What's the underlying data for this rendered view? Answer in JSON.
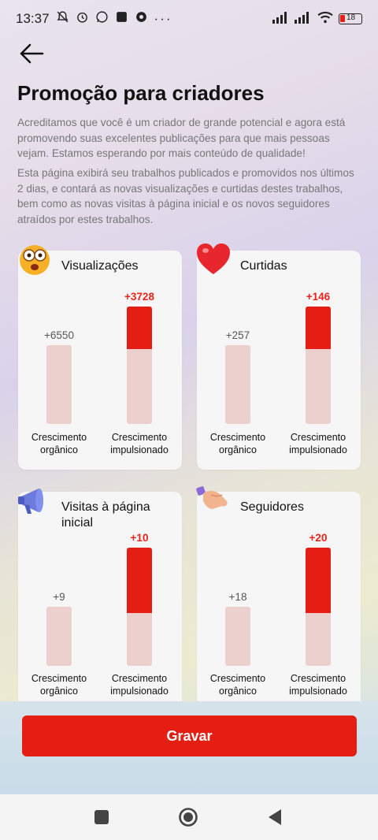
{
  "status": {
    "time": "13:37",
    "battery": "18"
  },
  "page": {
    "title": "Promoção para criadores",
    "desc1": "Acreditamos que você é um criador de grande potencial e agora está promovendo suas excelentes publicações para que mais pessoas vejam. Estamos esperando por mais conteúdo de qualidade!",
    "desc2": "Esta página exibirá seu trabalhos publicados e promovidos nos últimos 2 dias, e contará as novas visualizações e curtidas destes trabalhos, bem como as novas visitas à página inicial e os novos seguidores atraídos por estes trabalhos."
  },
  "labels": {
    "organic": "Crescimento orgânico",
    "boosted": "Crescimento impulsionado"
  },
  "cards": [
    {
      "title": "Visualizações",
      "organic": "+6550",
      "boosted": "+3728",
      "icon": "shocked-face-icon",
      "boost_fill_fraction": 0.36
    },
    {
      "title": "Curtidas",
      "organic": "+257",
      "boosted": "+146",
      "icon": "heart-icon",
      "boost_fill_fraction": 0.36
    },
    {
      "title": "Visitas à página inicial",
      "organic": "+9",
      "boosted": "+10",
      "icon": "megaphone-icon",
      "boost_fill_fraction": 0.55
    },
    {
      "title": "Seguidores",
      "organic": "+18",
      "boosted": "+20",
      "icon": "handshake-icon",
      "boost_fill_fraction": 0.55
    }
  ],
  "actions": {
    "record": "Gravar"
  },
  "colors": {
    "accent": "#e51e14",
    "bar_light": "#ebd0cd"
  }
}
